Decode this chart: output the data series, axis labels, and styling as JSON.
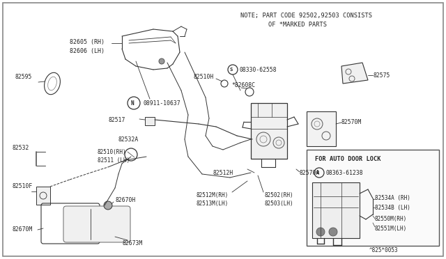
{
  "bg_color": "#ffffff",
  "border_color": "#888888",
  "line_color": "#333333",
  "text_color": "#222222",
  "diagram_code": "^825*0053",
  "note_line1": "NOTE; PART CODE 92502,92503 CONSISTS",
  "note_line2": "OF *MARKED PARTS",
  "inset_title": "FOR AUTO DOOR LOCK"
}
